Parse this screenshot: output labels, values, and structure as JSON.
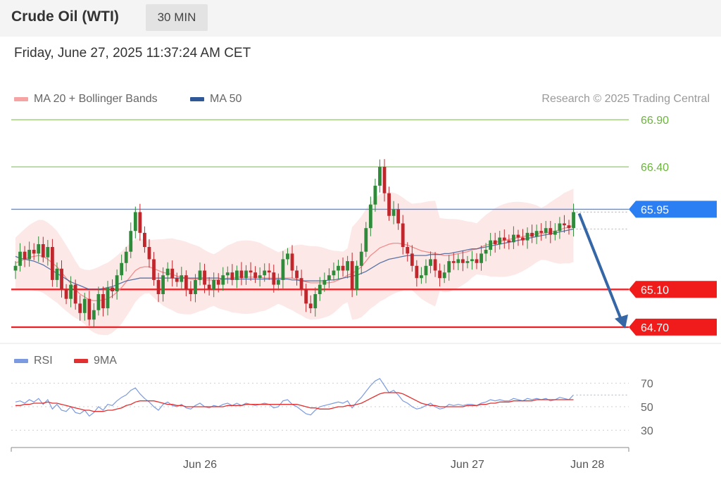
{
  "header": {
    "title": "Crude Oil (WTI)",
    "timeframe": "30 MIN"
  },
  "timestamp": "Friday, June 27, 2025 11:37:24 AM CET",
  "legend": {
    "ma20_label": "MA 20 + Bollinger Bands",
    "ma50_label": "MA 50",
    "rsi_label": "RSI",
    "rsi_ma_label": "9MA",
    "copyright": "Research © 2025 Trading Central"
  },
  "colors": {
    "ma20": "#f28b8b",
    "ma50": "#2f5896",
    "rsi": "#7b9ae0",
    "rsi_ma": "#e03030",
    "bull": "#2e8b3a",
    "bear": "#c0272d",
    "band": "#fde2e2",
    "target_up": "#92c86a",
    "pivot": "#4f8ff7",
    "support": "#e8262b",
    "arrow": "#3566a6"
  },
  "chart_data": [
    {
      "type": "candlestick",
      "ylim": [
        64.55,
        67.05
      ],
      "x_tick_labels": [
        {
          "label": "Jun 26",
          "index": 40
        },
        {
          "label": "Jun 27",
          "index": 98
        },
        {
          "label": "Jun 28",
          "index": 124
        }
      ],
      "levels": [
        {
          "value": 66.9,
          "label": "66.90",
          "kind": "target"
        },
        {
          "value": 66.4,
          "label": "66.40",
          "kind": "target"
        },
        {
          "value": 65.95,
          "label": "65.95",
          "kind": "pivot"
        },
        {
          "value": 65.1,
          "label": "65.10",
          "kind": "support"
        },
        {
          "value": 64.7,
          "label": "64.70",
          "kind": "support"
        }
      ],
      "forecast_arrow": {
        "from_value": 65.95,
        "to_value": 64.7
      },
      "closes": [
        65.35,
        65.5,
        65.42,
        65.52,
        65.48,
        65.58,
        65.44,
        65.55,
        65.2,
        65.32,
        65.1,
        65.0,
        65.15,
        64.95,
        64.85,
        65.0,
        64.78,
        64.88,
        65.05,
        64.9,
        65.12,
        65.08,
        65.25,
        65.38,
        65.5,
        65.72,
        65.92,
        65.7,
        65.55,
        65.42,
        65.2,
        65.05,
        65.25,
        65.32,
        65.22,
        65.18,
        65.25,
        65.1,
        65.05,
        65.2,
        65.3,
        65.15,
        65.1,
        65.2,
        65.15,
        65.25,
        65.28,
        65.2,
        65.3,
        65.22,
        65.3,
        65.28,
        65.22,
        65.25,
        65.3,
        65.28,
        65.15,
        65.2,
        65.42,
        65.48,
        65.3,
        65.22,
        65.1,
        64.95,
        64.9,
        65.05,
        65.15,
        65.2,
        65.25,
        65.3,
        65.35,
        65.3,
        65.4,
        65.1,
        65.35,
        65.5,
        65.75,
        66.0,
        66.2,
        66.4,
        66.12,
        65.88,
        65.95,
        65.8,
        65.55,
        65.48,
        65.35,
        65.22,
        65.25,
        65.35,
        65.42,
        65.3,
        65.22,
        65.28,
        65.4,
        65.38,
        65.42,
        65.38,
        65.4,
        65.42,
        65.38,
        65.48,
        65.52,
        65.62,
        65.58,
        65.65,
        65.62,
        65.6,
        65.68,
        65.65,
        65.62,
        65.7,
        65.66,
        65.72,
        65.7,
        65.75,
        65.68,
        65.72,
        65.8,
        65.78,
        65.75,
        65.92
      ],
      "ma20": [
        65.38,
        65.4,
        65.42,
        65.44,
        65.45,
        65.46,
        65.45,
        65.42,
        65.38,
        65.34,
        65.28,
        65.22,
        65.16,
        65.1,
        65.05,
        65.02,
        64.99,
        64.98,
        64.98,
        64.99,
        65.0,
        65.03,
        65.07,
        65.12,
        65.18,
        65.24,
        65.3,
        65.33,
        65.34,
        65.34,
        65.32,
        65.3,
        65.28,
        65.27,
        65.26,
        65.24,
        65.23,
        65.22,
        65.21,
        65.21,
        65.21,
        65.2,
        65.2,
        65.2,
        65.2,
        65.21,
        65.22,
        65.22,
        65.23,
        65.23,
        65.23,
        65.23,
        65.23,
        65.23,
        65.22,
        65.22,
        65.22,
        65.22,
        65.22,
        65.22,
        65.22,
        65.21,
        65.2,
        65.18,
        65.17,
        65.17,
        65.17,
        65.17,
        65.17,
        65.18,
        65.2,
        65.22,
        65.25,
        65.27,
        65.3,
        65.34,
        65.4,
        65.46,
        65.5,
        65.54,
        65.56,
        65.58,
        65.59,
        65.59,
        65.58,
        65.57,
        65.55,
        65.53,
        65.51,
        65.5,
        65.49,
        65.48,
        65.47,
        65.46,
        65.46,
        65.47,
        65.48,
        65.49,
        65.5,
        65.52,
        65.53,
        65.55,
        65.57,
        65.58,
        65.6,
        65.61,
        65.62,
        65.63,
        65.64,
        65.65,
        65.66,
        65.67,
        65.68,
        65.69,
        65.69,
        65.7,
        65.71,
        65.72,
        65.73,
        65.75,
        65.76,
        65.78
      ],
      "ma50": [
        65.45,
        65.43,
        65.42,
        65.41,
        65.4,
        65.38,
        65.36,
        65.33,
        65.3,
        65.27,
        65.24,
        65.21,
        65.18,
        65.16,
        65.14,
        65.12,
        65.1,
        65.1,
        65.1,
        65.11,
        65.12,
        65.13,
        65.15,
        65.17,
        65.19,
        65.2,
        65.21,
        65.22,
        65.22,
        65.22,
        65.22,
        65.22,
        65.22,
        65.22,
        65.22,
        65.22,
        65.22,
        65.22,
        65.22,
        65.22,
        65.22,
        65.22,
        65.22,
        65.22,
        65.22,
        65.21,
        65.21,
        65.21,
        65.21,
        65.21,
        65.21,
        65.21,
        65.21,
        65.21,
        65.21,
        65.21,
        65.21,
        65.21,
        65.21,
        65.21,
        65.2,
        65.2,
        65.19,
        65.19,
        65.19,
        65.19,
        65.19,
        65.19,
        65.2,
        65.2,
        65.21,
        65.22,
        65.23,
        65.24,
        65.25,
        65.27,
        65.29,
        65.32,
        65.35,
        65.38,
        65.4,
        65.42,
        65.43,
        65.44,
        65.45,
        65.46,
        65.46,
        65.46,
        65.46,
        65.46,
        65.47,
        65.47,
        65.47,
        65.48,
        65.48,
        65.49,
        65.5,
        65.51,
        65.52,
        65.53,
        65.53,
        65.54,
        65.55,
        65.56,
        65.57,
        65.58,
        65.59,
        65.6,
        65.61,
        65.62,
        65.63,
        65.64,
        65.65,
        65.66,
        65.67,
        65.68,
        65.69,
        65.7,
        65.71,
        65.72,
        65.73,
        65.74
      ]
    },
    {
      "type": "line",
      "name": "RSI",
      "ylim": [
        20,
        80
      ],
      "y_ticks": [
        70,
        50,
        30
      ],
      "rsi": [
        54,
        55,
        53,
        56,
        54,
        57,
        52,
        56,
        48,
        52,
        47,
        46,
        50,
        45,
        44,
        47,
        42,
        45,
        50,
        47,
        52,
        51,
        55,
        58,
        60,
        64,
        66,
        61,
        57,
        54,
        50,
        47,
        52,
        54,
        51,
        50,
        52,
        49,
        48,
        51,
        53,
        50,
        49,
        51,
        50,
        52,
        53,
        51,
        53,
        51,
        53,
        52,
        51,
        52,
        53,
        52,
        49,
        50,
        55,
        56,
        52,
        50,
        47,
        44,
        43,
        47,
        50,
        51,
        52,
        53,
        54,
        53,
        55,
        49,
        54,
        58,
        63,
        68,
        72,
        74,
        68,
        62,
        64,
        60,
        55,
        53,
        50,
        48,
        49,
        51,
        53,
        50,
        48,
        49,
        52,
        51,
        52,
        51,
        52,
        52,
        51,
        53,
        54,
        56,
        55,
        56,
        55,
        55,
        57,
        56,
        55,
        57,
        56,
        57,
        56,
        57,
        55,
        56,
        58,
        57,
        56,
        60
      ],
      "rsi_ma": [
        51,
        51,
        52,
        52,
        53,
        53,
        53,
        54,
        53,
        53,
        52,
        51,
        50,
        49,
        48,
        47,
        47,
        46,
        46,
        46,
        47,
        47,
        48,
        49,
        51,
        52,
        54,
        55,
        55,
        55,
        55,
        54,
        53,
        52,
        52,
        51,
        51,
        50,
        50,
        50,
        50,
        50,
        50,
        50,
        50,
        50,
        51,
        51,
        51,
        51,
        52,
        52,
        52,
        52,
        52,
        52,
        52,
        52,
        52,
        52,
        52,
        52,
        51,
        50,
        49,
        49,
        48,
        48,
        48,
        49,
        50,
        50,
        51,
        51,
        52,
        53,
        55,
        57,
        59,
        61,
        62,
        62,
        62,
        62,
        61,
        59,
        57,
        55,
        53,
        52,
        51,
        51,
        50,
        50,
        50,
        50,
        50,
        50,
        51,
        51,
        51,
        52,
        52,
        53,
        53,
        54,
        54,
        54,
        55,
        55,
        55,
        55,
        55,
        56,
        56,
        56,
        56,
        56,
        56,
        56,
        56,
        56
      ]
    }
  ]
}
